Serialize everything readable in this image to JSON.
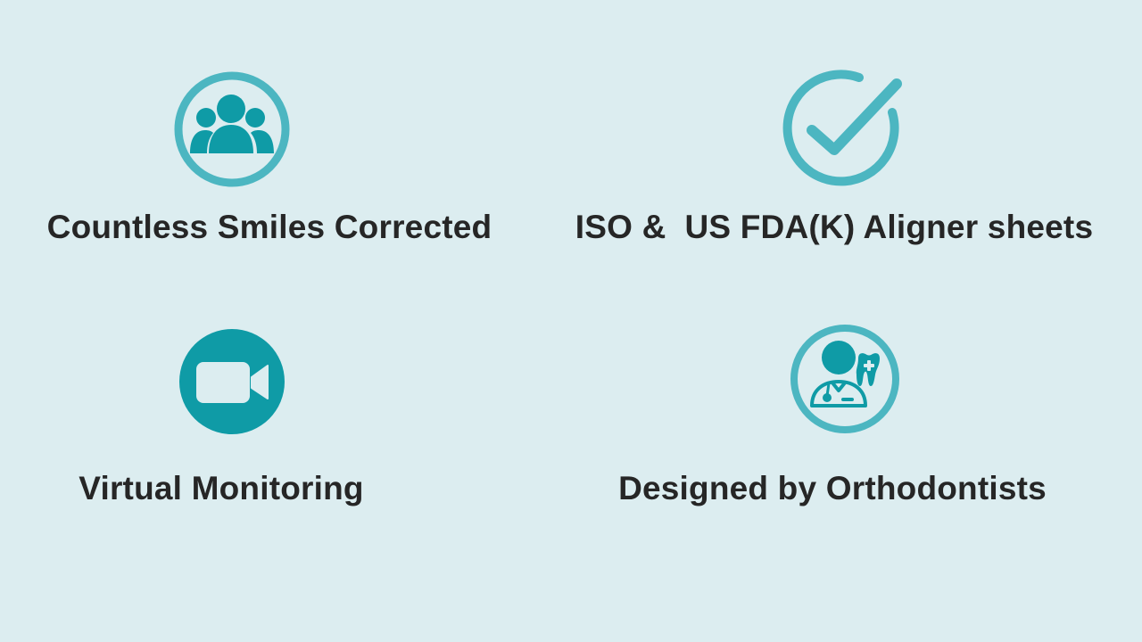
{
  "features": [
    {
      "label": "Countless Smiles Corrected",
      "icon": "people-group-icon"
    },
    {
      "label": "ISO &  US FDA(K) Aligner sheets",
      "icon": "checkmark-circle-icon"
    },
    {
      "label": "Virtual Monitoring",
      "icon": "video-camera-icon"
    },
    {
      "label": "Designed by Orthodontists",
      "icon": "orthodontist-icon"
    }
  ],
  "colors": {
    "background": "#dcedf0",
    "icon_primary": "#0f9ba6",
    "icon_ring": "#4cb6c1",
    "text": "#262626"
  }
}
